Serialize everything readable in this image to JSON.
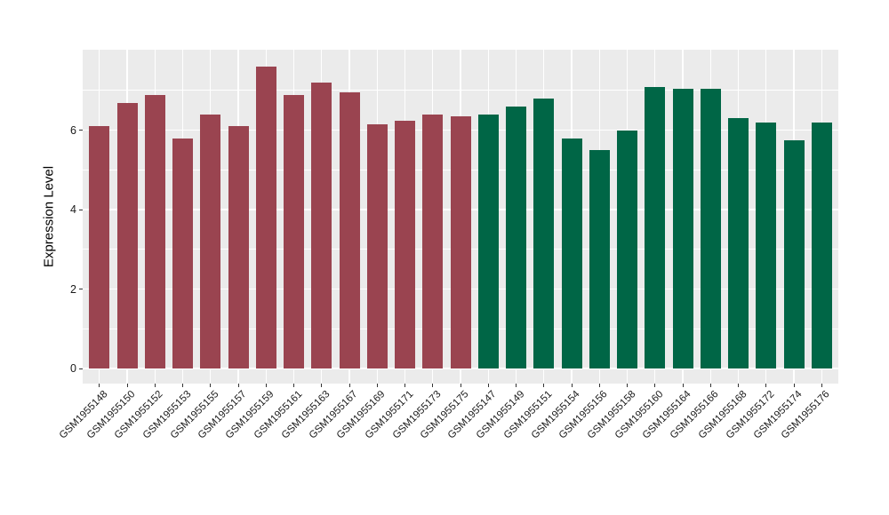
{
  "chart_data": {
    "type": "bar",
    "title": "",
    "xlabel": "",
    "ylabel": "Expression Level",
    "ylim": [
      0,
      8
    ],
    "y_major_ticks": [
      0,
      2,
      4,
      6
    ],
    "y_minor_gridlines": [
      1,
      3,
      5,
      7
    ],
    "grid": "on",
    "legend": "none",
    "panel_background": "#ebebeb",
    "gridline_color": "#ffffff",
    "axis_text_color": "#1a1a1a",
    "axis_title_color": "#000000",
    "tick_mark_color": "#333333",
    "group_colors": [
      "#9a4450",
      "#006646"
    ],
    "categories": [
      "GSM1955148",
      "GSM1955150",
      "GSM1955152",
      "GSM1955153",
      "GSM1955155",
      "GSM1955157",
      "GSM1955159",
      "GSM1955161",
      "GSM1955163",
      "GSM1955167",
      "GSM1955169",
      "GSM1955171",
      "GSM1955173",
      "GSM1955175",
      "GSM1955147",
      "GSM1955149",
      "GSM1955151",
      "GSM1955154",
      "GSM1955156",
      "GSM1955158",
      "GSM1955160",
      "GSM1955164",
      "GSM1955166",
      "GSM1955168",
      "GSM1955172",
      "GSM1955174",
      "GSM1955176"
    ],
    "values": [
      6.1,
      6.7,
      6.9,
      5.8,
      6.4,
      6.1,
      7.6,
      6.9,
      7.2,
      6.95,
      6.15,
      6.25,
      6.4,
      6.35,
      6.4,
      6.6,
      6.8,
      5.8,
      5.5,
      6.0,
      7.1,
      7.05,
      7.05,
      6.3,
      6.2,
      5.75,
      6.2
    ],
    "bar_groups": [
      0,
      0,
      0,
      0,
      0,
      0,
      0,
      0,
      0,
      0,
      0,
      0,
      0,
      0,
      1,
      1,
      1,
      1,
      1,
      1,
      1,
      1,
      1,
      1,
      1,
      1,
      1
    ]
  }
}
